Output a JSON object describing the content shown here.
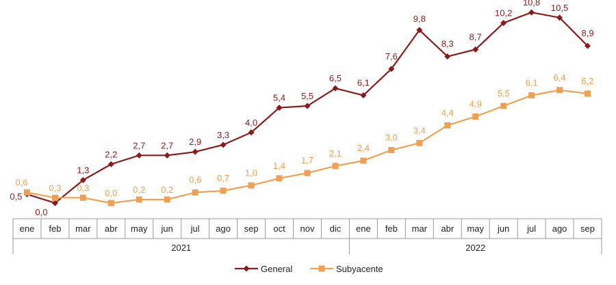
{
  "chart_data": {
    "type": "line",
    "categories": [
      "ene",
      "feb",
      "mar",
      "abr",
      "may",
      "jun",
      "jul",
      "ago",
      "sep",
      "oct",
      "nov",
      "dic",
      "ene",
      "feb",
      "mar",
      "abr",
      "may",
      "jun",
      "jul",
      "ago",
      "sep"
    ],
    "year_groups": [
      {
        "label": "2021",
        "start": 0,
        "end": 11
      },
      {
        "label": "2022",
        "start": 12,
        "end": 20
      }
    ],
    "series": [
      {
        "name": "General",
        "color": "#8B1A1A",
        "marker": "diamond",
        "values": [
          0.5,
          0.0,
          1.3,
          2.2,
          2.7,
          2.7,
          2.9,
          3.3,
          4.0,
          5.4,
          5.5,
          6.5,
          6.1,
          7.6,
          9.8,
          8.3,
          8.7,
          10.2,
          10.8,
          10.5,
          8.9
        ],
        "labels": [
          "0,5",
          "0,0",
          "1,3",
          "2,2",
          "2,7",
          "2,7",
          "2,9",
          "3,3",
          "4,0",
          "5,4",
          "5,5",
          "6,5",
          "6,1",
          "7,6",
          "9,8",
          "8,3",
          "8,7",
          "10,2",
          "10,8",
          "10,5",
          "8,9"
        ]
      },
      {
        "name": "Subyacente",
        "color": "#F0A050",
        "marker": "square",
        "values": [
          0.6,
          0.3,
          0.3,
          0.0,
          0.2,
          0.2,
          0.6,
          0.7,
          1.0,
          1.4,
          1.7,
          2.1,
          2.4,
          3.0,
          3.4,
          4.4,
          4.9,
          5.5,
          6.1,
          6.4,
          6.2
        ],
        "labels": [
          "0,6",
          "0,3",
          "0,3",
          "0,0",
          "0,2",
          "0,2",
          "0,6",
          "0,7",
          "1,0",
          "1,4",
          "1,7",
          "2,1",
          "2,4",
          "3,0",
          "3,4",
          "4,4",
          "4,9",
          "5,5",
          "6,1",
          "6,4",
          "6,2"
        ]
      }
    ],
    "ylim": [
      -0.5,
      11.5
    ],
    "grid": false,
    "legend_position": "bottom-center"
  }
}
